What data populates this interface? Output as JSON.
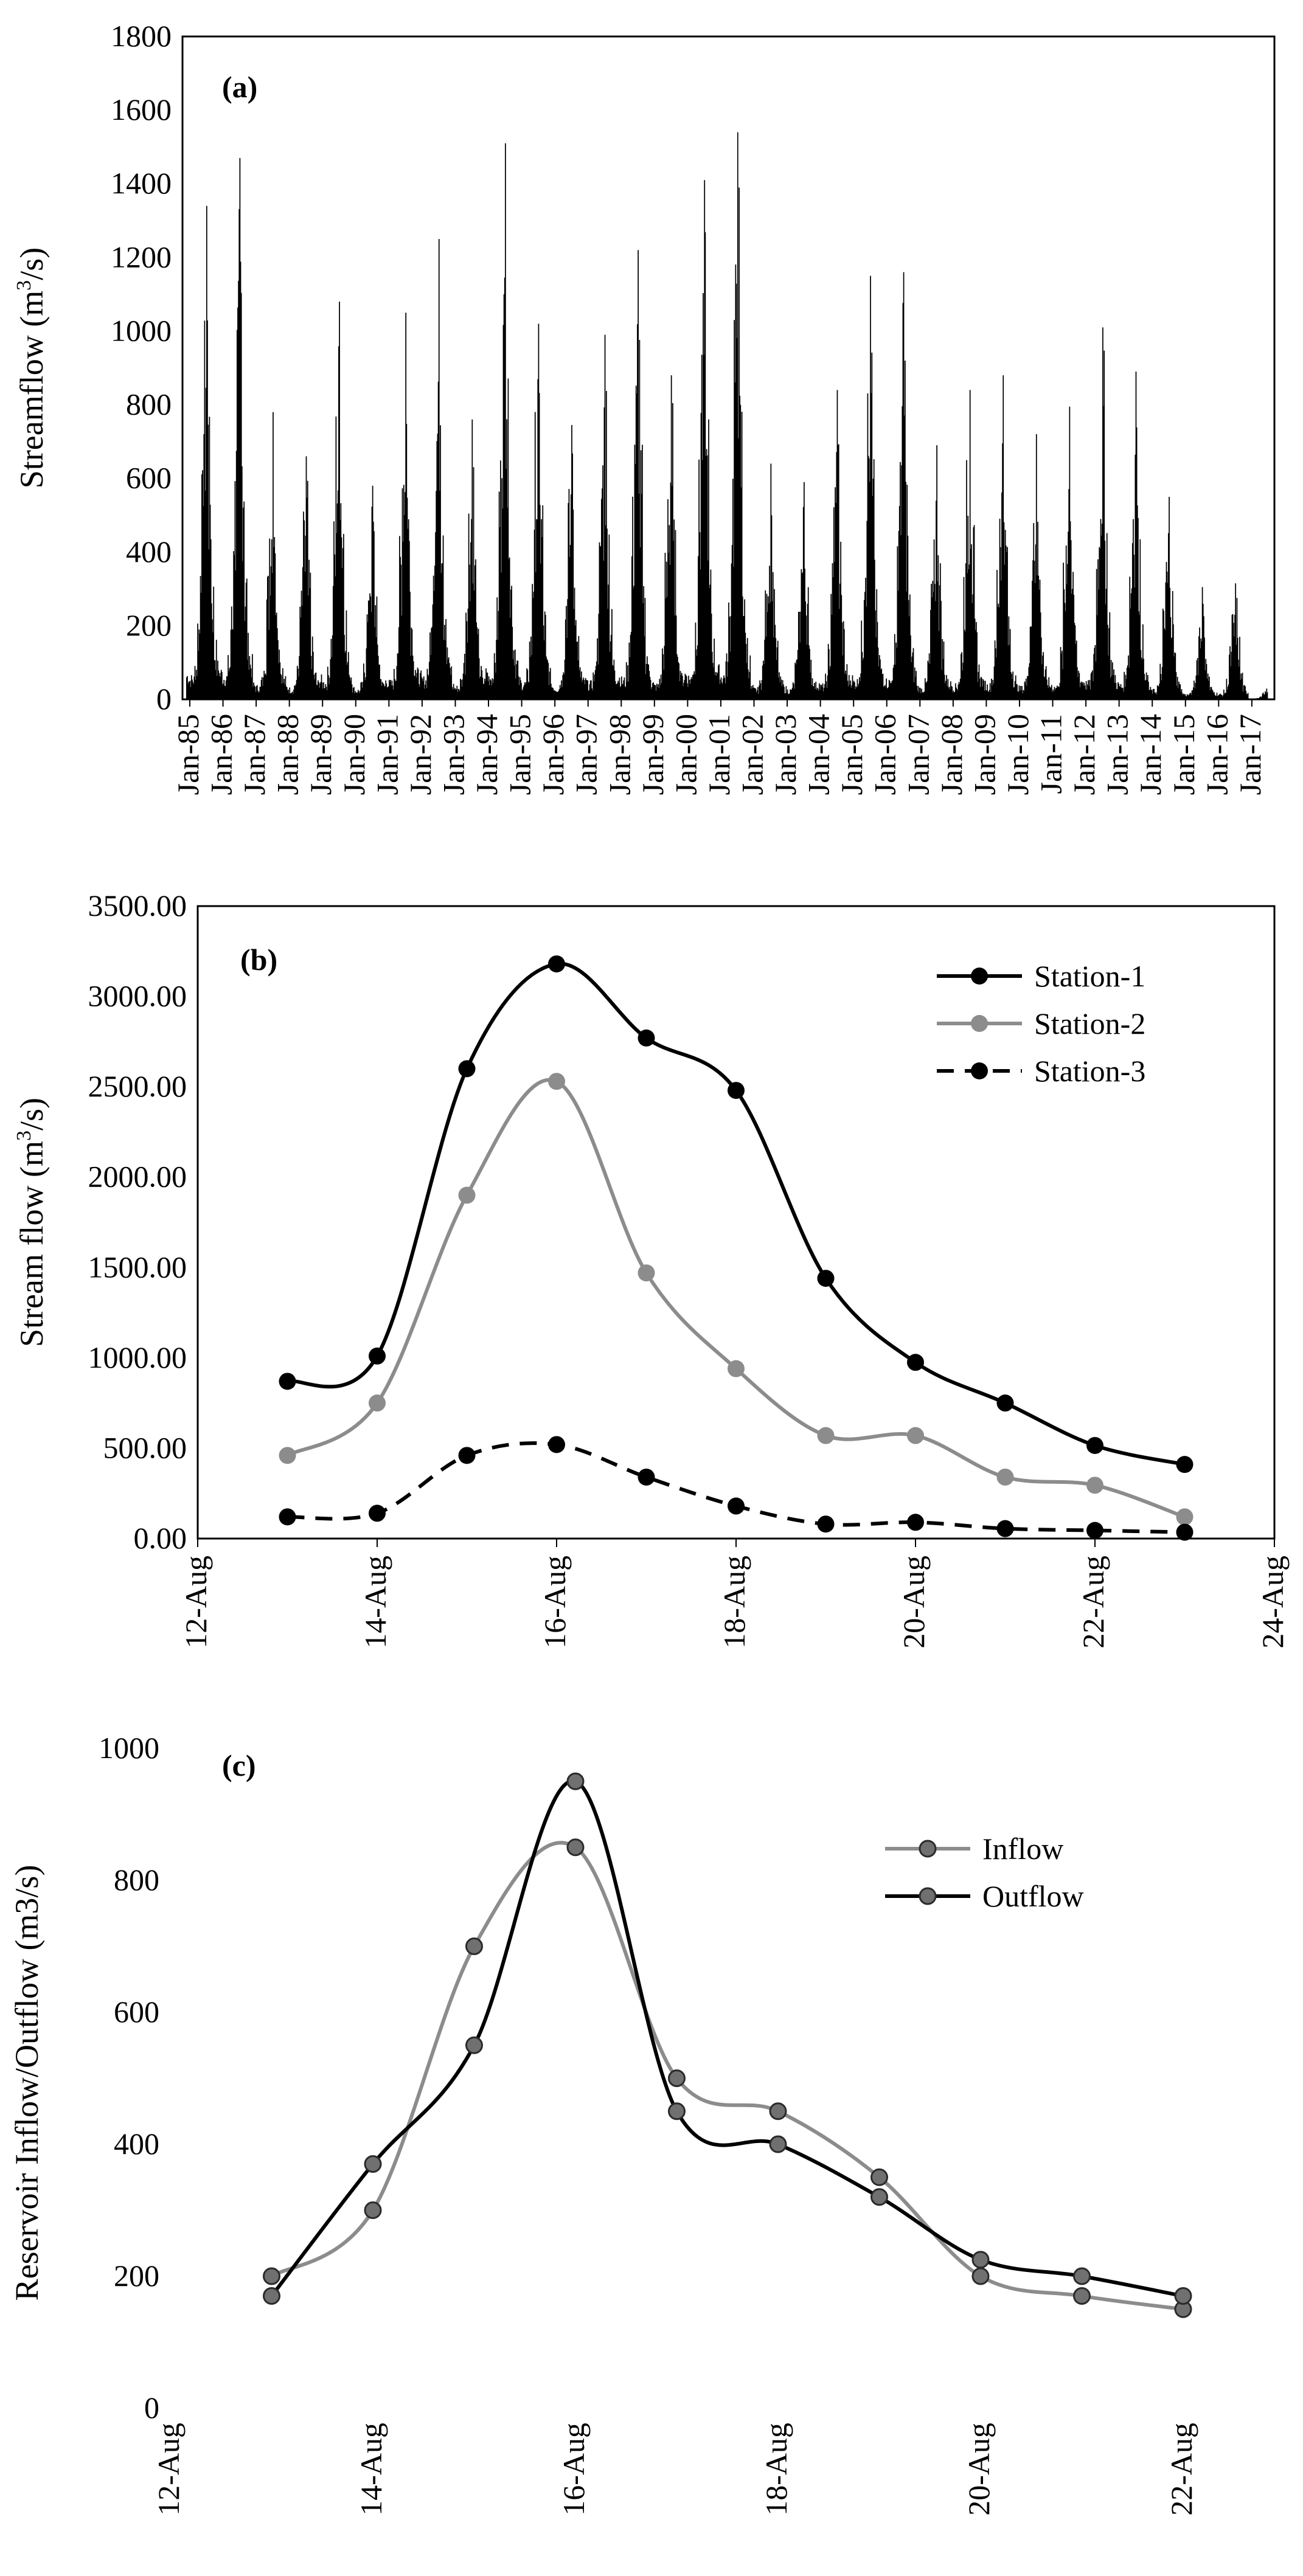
{
  "chart_data": [
    {
      "panel": "(a)",
      "type": "bar",
      "title": "",
      "ylabel": "Streamflow (m3/s)",
      "ylabel_main": "Streamflow (m",
      "ylabel_sup": "3",
      "ylabel_end": "/s)",
      "ylim": [
        0,
        1800
      ],
      "yticks": [
        "0",
        "200",
        "400",
        "600",
        "800",
        "1000",
        "1200",
        "1400",
        "1600",
        "1800"
      ],
      "xticks": [
        "Jan-85",
        "Jan-86",
        "Jan-87",
        "Jan-88",
        "Jan-89",
        "Jan-90",
        "Jan-91",
        "Jan-92",
        "Jan-93",
        "Jan-94",
        "Jan-95",
        "Jan-96",
        "Jan-97",
        "Jan-98",
        "Jan-99",
        "Jan-00",
        "Jan-01",
        "Jan-02",
        "Jan-03",
        "Jan-04",
        "Jan-05",
        "Jan-06",
        "Jan-07",
        "Jan-08",
        "Jan-09",
        "Jan-10",
        "Jan-11",
        "Jan-12",
        "Jan-13",
        "Jan-14",
        "Jan-15",
        "Jan-16",
        "Jan-17"
      ],
      "annual_peaks": [
        1340,
        1470,
        780,
        660,
        1080,
        580,
        1050,
        1250,
        760,
        1510,
        1020,
        745,
        990,
        1220,
        880,
        1410,
        1540,
        640,
        590,
        840,
        1150,
        1160,
        690,
        840,
        880,
        720,
        795,
        1010,
        890,
        550,
        305,
        315,
        45
      ]
    },
    {
      "panel": "(b)",
      "type": "line",
      "ylabel": "Stream flow (m3/s)",
      "ylabel_main": "Stream flow (m",
      "ylabel_sup": "3",
      "ylabel_end": "/s)",
      "ylim": [
        0,
        3500
      ],
      "yticks": [
        "0.00",
        "500.00",
        "1000.00",
        "1500.00",
        "2000.00",
        "2500.00",
        "3000.00",
        "3500.00"
      ],
      "xlim": [
        12,
        24
      ],
      "xticks": [
        "12-Aug",
        "14-Aug",
        "16-Aug",
        "18-Aug",
        "20-Aug",
        "22-Aug",
        "24-Aug"
      ],
      "x": [
        13,
        14,
        15,
        16,
        17,
        18,
        19,
        20,
        21,
        22,
        23
      ],
      "legend_position": "top-right",
      "series": [
        {
          "name": "Station-1",
          "color": "#000000",
          "dash": false,
          "values": [
            870,
            1010,
            2600,
            3180,
            2770,
            2480,
            1440,
            975,
            750,
            515,
            410
          ]
        },
        {
          "name": "Station-2",
          "color": "#8c8c8c",
          "dash": false,
          "values": [
            460,
            750,
            1900,
            2530,
            1470,
            940,
            570,
            570,
            340,
            295,
            120
          ]
        },
        {
          "name": "Station-3",
          "color": "#000000",
          "dash": true,
          "values": [
            120,
            140,
            460,
            520,
            340,
            180,
            80,
            90,
            55,
            45,
            35
          ]
        }
      ]
    },
    {
      "panel": "(c)",
      "type": "line",
      "ylabel": "Reservoir Inflow/Outflow (m3/s)",
      "ylim": [
        0,
        1000
      ],
      "yticks": [
        "0",
        "200",
        "400",
        "600",
        "800",
        "1000"
      ],
      "xlim": [
        12,
        22
      ],
      "xticks": [
        "12-Aug",
        "14-Aug",
        "16-Aug",
        "18-Aug",
        "20-Aug",
        "22-Aug"
      ],
      "x": [
        13,
        14,
        15,
        16,
        17,
        18,
        19,
        20,
        21,
        22
      ],
      "legend_position": "top-right",
      "series": [
        {
          "name": "Inflow",
          "color": "#8c8c8c",
          "values": [
            200,
            300,
            700,
            850,
            500,
            450,
            350,
            200,
            170,
            150
          ]
        },
        {
          "name": "Outflow",
          "color": "#000000",
          "values": [
            170,
            370,
            550,
            950,
            450,
            400,
            320,
            225,
            200,
            170
          ]
        }
      ]
    }
  ]
}
